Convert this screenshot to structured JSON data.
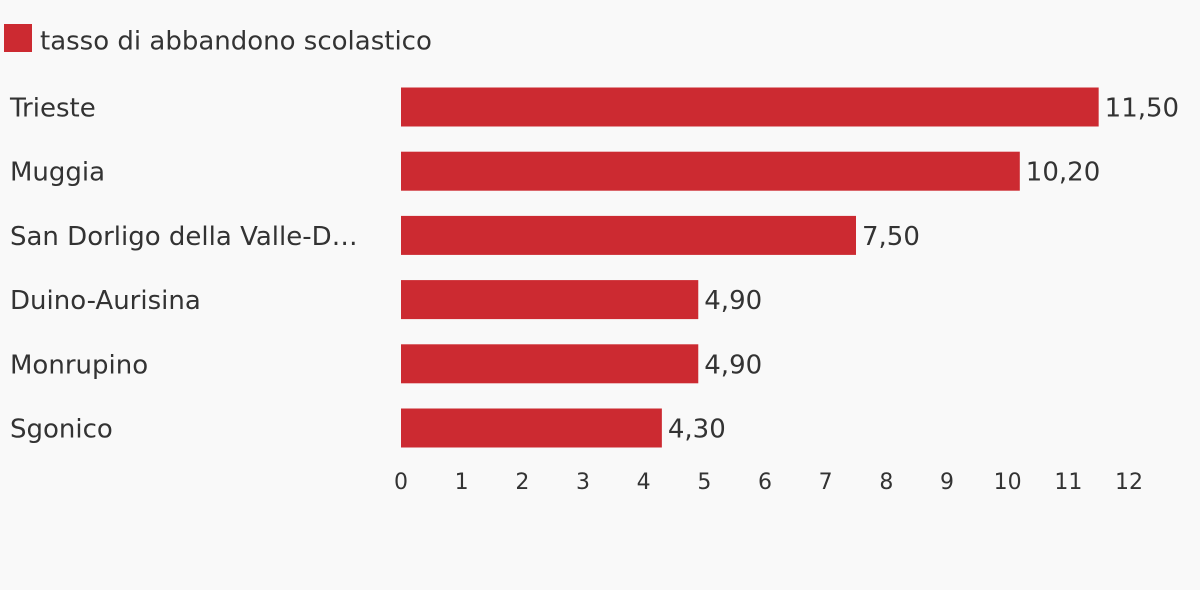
{
  "chart_data": {
    "type": "bar",
    "orientation": "horizontal",
    "categories": [
      "Trieste",
      "Muggia",
      "San Dorligo della Valle-D…",
      "Duino-Aurisina",
      "Monrupino",
      "Sgonico"
    ],
    "series": [
      {
        "name": "tasso di abbandono scolastico",
        "color": "#cc2a31",
        "values": [
          11.5,
          10.2,
          7.5,
          4.9,
          4.9,
          4.3
        ],
        "value_labels": [
          "11,50",
          "10,20",
          "7,50",
          "4,90",
          "4,90",
          "4,30"
        ]
      }
    ],
    "xlim": [
      0,
      12
    ],
    "xticks": [
      0,
      1,
      2,
      3,
      4,
      5,
      6,
      7,
      8,
      9,
      10,
      11,
      12
    ],
    "grid": false,
    "legend": "top-left"
  }
}
